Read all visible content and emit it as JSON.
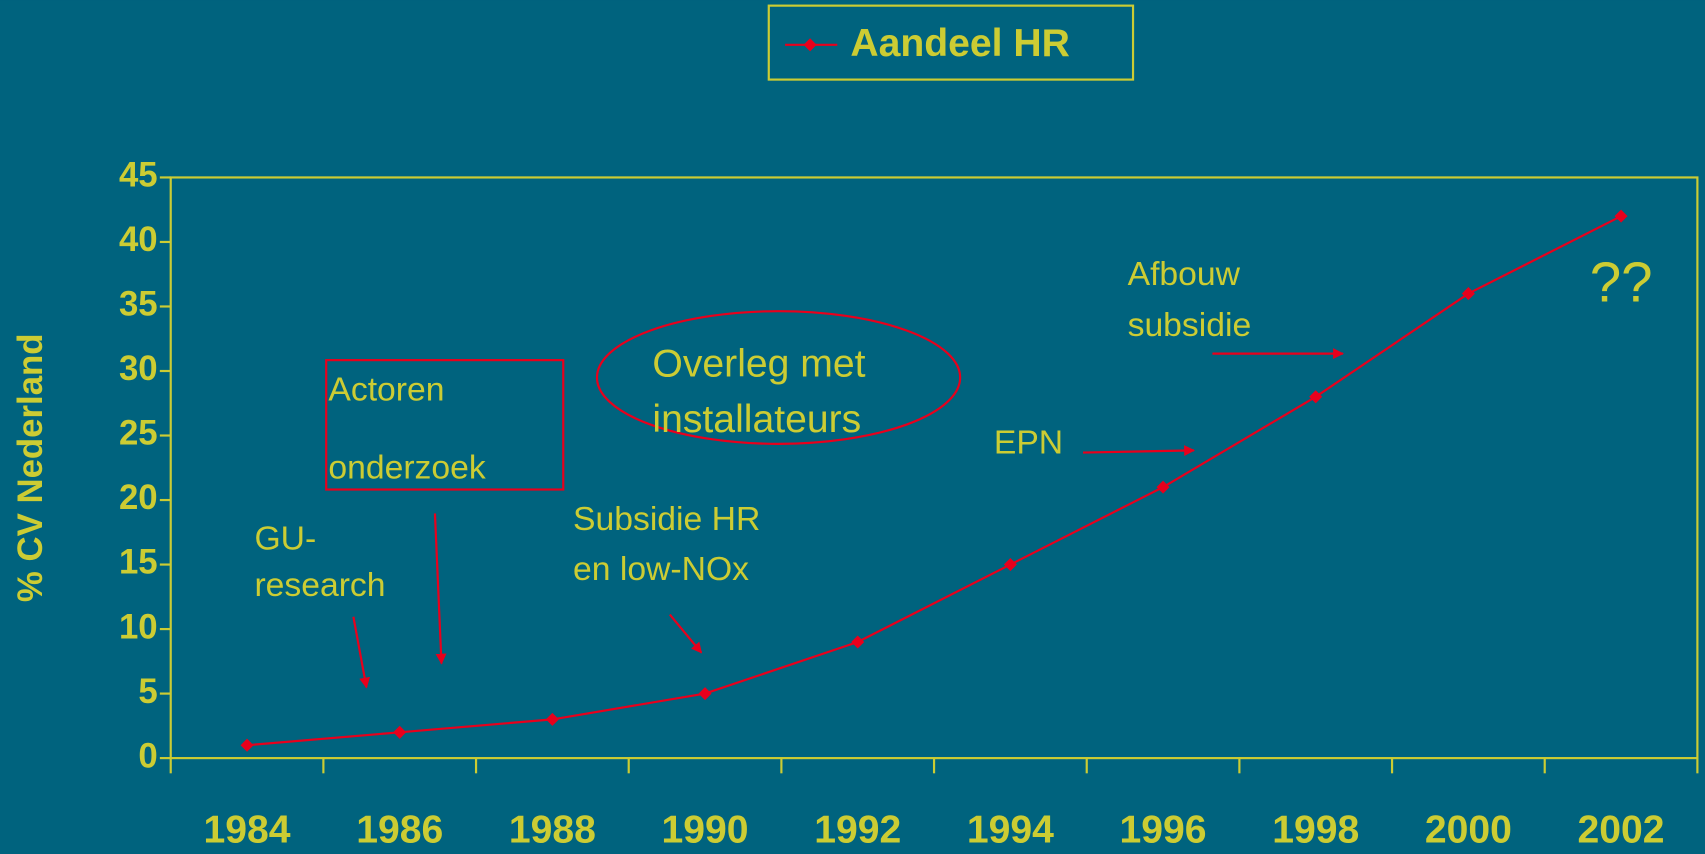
{
  "chart_data": {
    "type": "line",
    "categories": [
      "1984",
      "1986",
      "1988",
      "1990",
      "1992",
      "1994",
      "1996",
      "1998",
      "2000",
      "2002"
    ],
    "series": [
      {
        "name": "Aandeel HR",
        "color": "#e8001c",
        "values": [
          1,
          2,
          3,
          5,
          9,
          15,
          21,
          28,
          36,
          42
        ]
      }
    ],
    "ylabel": "% CV Nederland",
    "ylim": [
      0,
      45
    ],
    "yticks": [
      0,
      5,
      10,
      15,
      20,
      25,
      30,
      35,
      40,
      45
    ],
    "legend": "top",
    "annotations": [
      {
        "lines": [
          "GU-",
          "research"
        ]
      },
      {
        "lines": [
          "Actoren",
          "onderzoek"
        ]
      },
      {
        "lines": [
          "Overleg met",
          "installateurs"
        ]
      },
      {
        "lines": [
          "Subsidie HR",
          "en low-NOx"
        ]
      },
      {
        "lines": [
          "EPN"
        ]
      },
      {
        "lines": [
          "Afbouw",
          "subsidie"
        ]
      },
      {
        "lines": [
          "??"
        ]
      }
    ]
  }
}
